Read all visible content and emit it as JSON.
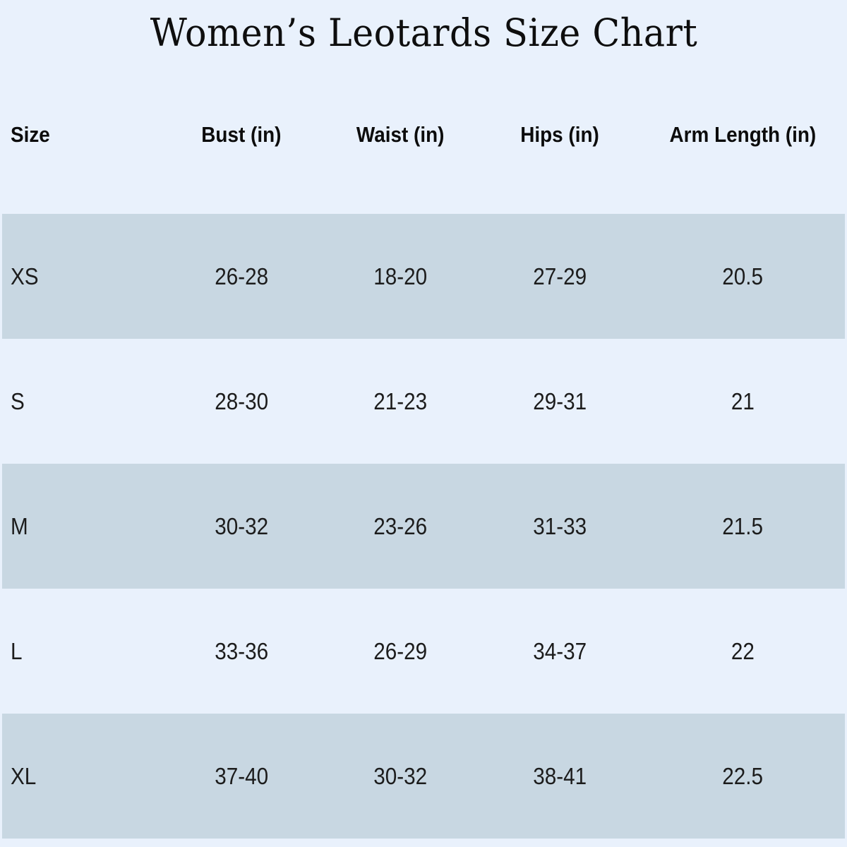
{
  "title": "Women’s Leotards Size Chart",
  "colors": {
    "page_background": "#e9f1fc",
    "row_stripe": "#c8d7e2",
    "text": "#161616"
  },
  "chart_data": {
    "type": "table",
    "title": "Women’s Leotards Size Chart",
    "columns": [
      "Size",
      "Bust (in)",
      "Waist (in)",
      "Hips (in)",
      "Arm Length (in)"
    ],
    "striped_row_sizes": [
      "XS",
      "M",
      "XL"
    ],
    "rows": [
      {
        "size": "XS",
        "bust": "26-28",
        "waist": "18-20",
        "hips": "27-29",
        "arm_length": "20.5"
      },
      {
        "size": "S",
        "bust": "28-30",
        "waist": "21-23",
        "hips": "29-31",
        "arm_length": "21"
      },
      {
        "size": "M",
        "bust": "30-32",
        "waist": "23-26",
        "hips": "31-33",
        "arm_length": "21.5"
      },
      {
        "size": "L",
        "bust": "33-36",
        "waist": "26-29",
        "hips": "34-37",
        "arm_length": "22"
      },
      {
        "size": "XL",
        "bust": "37-40",
        "waist": "30-32",
        "hips": "38-41",
        "arm_length": "22.5"
      }
    ]
  }
}
